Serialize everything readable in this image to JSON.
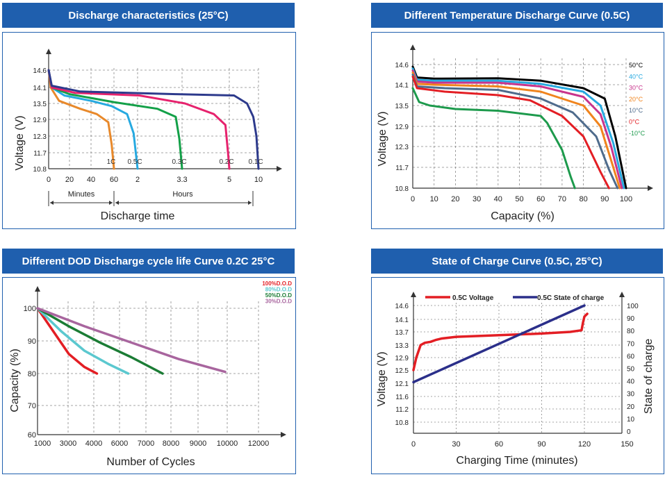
{
  "panels": [
    {
      "title": "Discharge characteristics (25°C)",
      "chart_data": {
        "type": "line",
        "ylabel": "Voltage (V)",
        "xlabel": "Discharge time",
        "y_ticks": [
          "14.6",
          "14.1",
          "13.5",
          "12.9",
          "12.3",
          "11.7",
          "10.8"
        ],
        "x_ticks": [
          "0",
          "20",
          "40",
          "60",
          "2",
          "3.3",
          "5",
          "10"
        ],
        "minutes_label": "Minutes",
        "hours_label": "Hours",
        "grid": true,
        "series": [
          {
            "name": "1C",
            "color": "#e8892b",
            "points": [
              [
                0,
                14.6
              ],
              [
                2,
                14.1
              ],
              [
                10,
                13.6
              ],
              [
                30,
                13.3
              ],
              [
                45,
                13.1
              ],
              [
                55,
                12.8
              ],
              [
                58,
                12.0
              ],
              [
                60,
                10.8
              ]
            ]
          },
          {
            "name": "0.5C",
            "color": "#26a9e0",
            "points": [
              [
                0,
                14.6
              ],
              [
                3,
                14.1
              ],
              [
                15,
                13.8
              ],
              [
                40,
                13.6
              ],
              [
                58,
                13.4
              ],
              [
                70,
                13.1
              ],
              [
                75,
                12.4
              ],
              [
                78,
                10.8
              ]
            ]
          },
          {
            "name": "0.3C",
            "color": "#13a048",
            "points": [
              [
                0,
                14.6
              ],
              [
                3,
                14.1
              ],
              [
                20,
                13.85
              ],
              [
                60,
                13.55
              ],
              [
                100,
                13.3
              ],
              [
                120,
                13.0
              ],
              [
                124,
                12.2
              ],
              [
                127,
                10.8
              ]
            ]
          },
          {
            "name": "0.2C",
            "color": "#e6226d",
            "points": [
              [
                0,
                14.6
              ],
              [
                3,
                14.1
              ],
              [
                25,
                13.9
              ],
              [
                80,
                13.8
              ],
              [
                130,
                13.5
              ],
              [
                160,
                13.1
              ],
              [
                172,
                12.7
              ],
              [
                175,
                11.5
              ],
              [
                176,
                10.8
              ]
            ]
          },
          {
            "name": "0.1C",
            "color": "#2d3a8c",
            "points": [
              [
                0,
                14.6
              ],
              [
                3,
                14.15
              ],
              [
                30,
                13.95
              ],
              [
                120,
                13.85
              ],
              [
                185,
                13.8
              ],
              [
                210,
                13.5
              ],
              [
                222,
                13.0
              ],
              [
                228,
                12.3
              ],
              [
                232,
                10.8
              ]
            ]
          }
        ]
      }
    },
    {
      "title": "Different Temperature Discharge Curve (0.5C)",
      "chart_data": {
        "type": "line",
        "ylabel": "Voltage (V)",
        "xlabel": "Capacity (%)",
        "y_ticks": [
          "14.6",
          "14.1",
          "13.5",
          "12.9",
          "12.3",
          "11.7",
          "10.8"
        ],
        "x_ticks": [
          "0",
          "10",
          "20",
          "30",
          "40",
          "50",
          "60",
          "70",
          "80",
          "90",
          "100"
        ],
        "xlim": [
          0,
          105
        ],
        "grid": true,
        "series": [
          {
            "name": "50°C",
            "color": "#000000",
            "points": [
              [
                0,
                14.55
              ],
              [
                2,
                14.28
              ],
              [
                10,
                14.25
              ],
              [
                40,
                14.26
              ],
              [
                60,
                14.2
              ],
              [
                80,
                14.0
              ],
              [
                90,
                13.7
              ],
              [
                95,
                12.6
              ],
              [
                100,
                10.8
              ]
            ]
          },
          {
            "name": "40°C",
            "color": "#26a9e0",
            "points": [
              [
                0,
                14.5
              ],
              [
                2,
                14.22
              ],
              [
                10,
                14.2
              ],
              [
                40,
                14.2
              ],
              [
                60,
                14.12
              ],
              [
                80,
                13.9
              ],
              [
                88,
                13.5
              ],
              [
                94,
                12.4
              ],
              [
                99,
                10.8
              ]
            ]
          },
          {
            "name": "30°C",
            "color": "#c8348c",
            "points": [
              [
                0,
                14.45
              ],
              [
                2,
                14.18
              ],
              [
                10,
                14.15
              ],
              [
                40,
                14.15
              ],
              [
                60,
                14.05
              ],
              [
                80,
                13.75
              ],
              [
                88,
                13.25
              ],
              [
                93,
                12.3
              ],
              [
                98,
                10.8
              ]
            ]
          },
          {
            "name": "20°C",
            "color": "#f0841d",
            "points": [
              [
                0,
                14.4
              ],
              [
                2,
                14.12
              ],
              [
                10,
                14.1
              ],
              [
                40,
                14.05
              ],
              [
                60,
                13.9
              ],
              [
                80,
                13.5
              ],
              [
                88,
                12.9
              ],
              [
                93,
                11.9
              ],
              [
                97,
                10.8
              ]
            ]
          },
          {
            "name": "10°C",
            "color": "#4e6b8c",
            "points": [
              [
                0,
                14.35
              ],
              [
                2,
                14.05
              ],
              [
                15,
                14.0
              ],
              [
                40,
                13.95
              ],
              [
                60,
                13.7
              ],
              [
                75,
                13.3
              ],
              [
                86,
                12.6
              ],
              [
                92,
                11.6
              ],
              [
                96,
                10.8
              ]
            ]
          },
          {
            "name": "0°C",
            "color": "#e31e24",
            "points": [
              [
                0,
                14.3
              ],
              [
                2,
                14.0
              ],
              [
                15,
                13.9
              ],
              [
                40,
                13.8
              ],
              [
                55,
                13.65
              ],
              [
                70,
                13.2
              ],
              [
                80,
                12.6
              ],
              [
                88,
                11.5
              ],
              [
                92,
                10.8
              ]
            ]
          },
          {
            "name": "-10°C",
            "color": "#1d9a4c",
            "points": [
              [
                0,
                14.0
              ],
              [
                3,
                13.6
              ],
              [
                8,
                13.5
              ],
              [
                20,
                13.4
              ],
              [
                40,
                13.35
              ],
              [
                60,
                13.2
              ],
              [
                63,
                13.0
              ],
              [
                70,
                12.2
              ],
              [
                74,
                11.3
              ],
              [
                76,
                10.8
              ]
            ]
          }
        ]
      }
    },
    {
      "title": "Different DOD Discharge cycle life Curve 0.2C 25°C",
      "chart_data": {
        "type": "line",
        "ylabel": "Capacity (%)",
        "xlabel": "Number of Cycles",
        "y_ticks": [
          "100",
          "90",
          "80",
          "70",
          "60"
        ],
        "x_ticks": [
          "1000",
          "3000",
          "4000",
          "6000",
          "7000",
          "8000",
          "9000",
          "10000",
          "12000"
        ],
        "grid": true,
        "series": [
          {
            "name": "100%D.O.D",
            "color": "#e31e24",
            "points": [
              [
                0,
                100
              ],
              [
                1,
                93
              ],
              [
                2,
                86
              ],
              [
                3,
                82
              ],
              [
                3.8,
                80
              ]
            ]
          },
          {
            "name": "80%D.O.D",
            "color": "#5bc8cf",
            "points": [
              [
                0,
                100
              ],
              [
                1.5,
                93
              ],
              [
                3,
                87
              ],
              [
                4.5,
                83
              ],
              [
                5.8,
                80
              ]
            ]
          },
          {
            "name": "50%D.O.D",
            "color": "#1b7c35",
            "points": [
              [
                0,
                100
              ],
              [
                2,
                94.5
              ],
              [
                4,
                89.5
              ],
              [
                6,
                85
              ],
              [
                8,
                80
              ]
            ]
          },
          {
            "name": "30%D.O.D",
            "color": "#a8659e",
            "points": [
              [
                0,
                100
              ],
              [
                3,
                94.5
              ],
              [
                6,
                89.5
              ],
              [
                9,
                84.5
              ],
              [
                12,
                80.5
              ]
            ]
          }
        ]
      }
    },
    {
      "title": "State of Charge Curve (0.5C, 25°C)",
      "chart_data": {
        "type": "line",
        "ylabel": "Voltage (V)",
        "y2label": "State of charge",
        "xlabel": "Charging Time (minutes)",
        "y_ticks": [
          "14.6",
          "14.1",
          "13.7",
          "13.3",
          "12.9",
          "12.5",
          "12.1",
          "11.6",
          "11.2",
          "10.8"
        ],
        "y2_ticks": [
          "100",
          "90",
          "80",
          "70",
          "60",
          "50",
          "40",
          "30",
          "20",
          "10",
          "0"
        ],
        "x_ticks": [
          "0",
          "30",
          "60",
          "90",
          "120",
          "150"
        ],
        "legend": [
          "0.5C Voltage",
          "0.5C State of charge"
        ],
        "grid": true,
        "series": [
          {
            "name": "0.5C Voltage",
            "color": "#e31e24",
            "axis": "left",
            "points": [
              [
                0,
                12.5
              ],
              [
                2,
                12.9
              ],
              [
                5,
                13.3
              ],
              [
                8,
                13.37
              ],
              [
                12,
                13.4
              ],
              [
                16,
                13.46
              ],
              [
                20,
                13.5
              ],
              [
                30,
                13.55
              ],
              [
                60,
                13.6
              ],
              [
                90,
                13.65
              ],
              [
                110,
                13.7
              ],
              [
                118,
                13.75
              ],
              [
                119,
                14.0
              ],
              [
                120,
                14.2
              ],
              [
                121,
                14.25
              ],
              [
                122,
                14.3
              ]
            ]
          },
          {
            "name": "0.5C State of charge",
            "color": "#2b2f8a",
            "axis": "right",
            "points": [
              [
                0,
                40
              ],
              [
                120,
                100
              ]
            ]
          }
        ]
      }
    }
  ]
}
